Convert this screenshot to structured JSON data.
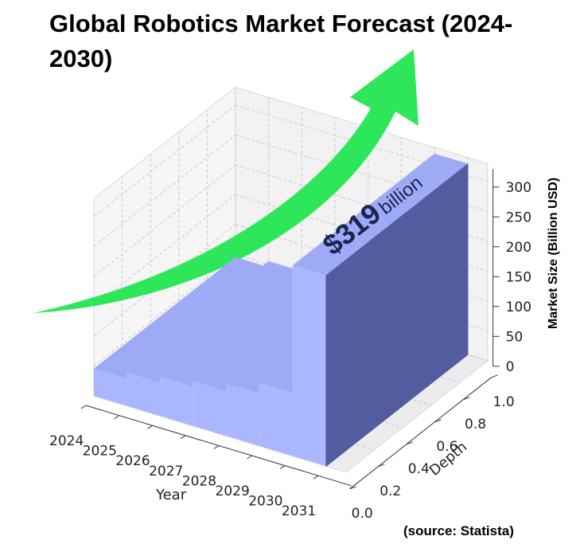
{
  "title": "Global Robotics Market Forecast (2024-2030)",
  "source": "(source: Statista)",
  "callout": {
    "value": "$319",
    "unit": "billion"
  },
  "colors": {
    "bar_front": "#aab6ff",
    "bar_top": "#9eaaf5",
    "bar_side": "#535c9e",
    "arrow": "#2ee65a",
    "callout_text": "#1c2550"
  },
  "chart_data": {
    "type": "bar",
    "style": "3d",
    "title": "Global Robotics Market Forecast (2024-2030)",
    "categories": [
      "2024",
      "2025",
      "2026",
      "2027",
      "2028",
      "2029",
      "2030"
    ],
    "values": [
      45,
      55,
      65,
      74,
      87,
      105,
      319
    ],
    "xlabel": "Year",
    "ylabel": "Depth",
    "zlabel": "Market Size (Billion USD)",
    "x_ticks": [
      "2024",
      "2025",
      "2026",
      "2027",
      "2028",
      "2029",
      "2030",
      "2031"
    ],
    "y_ticks": [
      "0.0",
      "0.2",
      "0.4",
      "0.6",
      "0.8",
      "1.0"
    ],
    "z_ticks": [
      "0",
      "50",
      "100",
      "150",
      "200",
      "250",
      "300"
    ],
    "zlim": [
      0,
      330
    ],
    "grid": true
  }
}
